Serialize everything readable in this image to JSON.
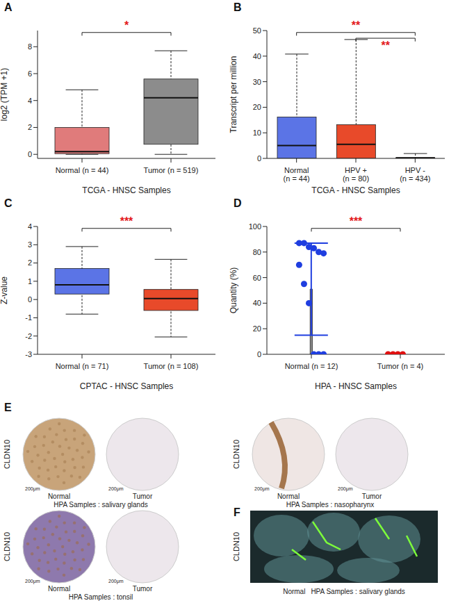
{
  "chart_data": [
    {
      "panel": "A",
      "type": "box",
      "categories": [
        "Normal (n = 44)",
        "Tumor (n = 519)"
      ],
      "boxes": [
        {
          "min": 0,
          "q1": 0.05,
          "median": 0.2,
          "q3": 2.0,
          "max": 4.8
        },
        {
          "min": 0,
          "q1": 0.75,
          "median": 4.2,
          "q3": 5.6,
          "max": 7.7
        }
      ],
      "colors": [
        "#e07b7b",
        "#8c8c8c"
      ],
      "ylabel": "log2 (TPM +1)",
      "xlabel": "TCGA - HNSC Samples",
      "ylim": [
        -0.3,
        9.2
      ],
      "yticks": [
        0,
        2,
        4,
        6,
        8
      ],
      "annotations": [
        {
          "from": "Normal (n = 44)",
          "to": "Tumor (n = 519)",
          "label": "*"
        }
      ]
    },
    {
      "panel": "B",
      "type": "box",
      "categories": [
        "Normal (n = 44)",
        "HPV + (n = 80)",
        "HPV - (n = 434)"
      ],
      "boxes": [
        {
          "min": 0,
          "q1": 0,
          "median": 5,
          "q3": 16.2,
          "max": 40.8
        },
        {
          "min": 0,
          "q1": 0,
          "median": 5.5,
          "q3": 13.2,
          "max": 46.5
        },
        {
          "min": 0,
          "q1": 0,
          "median": 0.2,
          "q3": 0.3,
          "max": 1.9
        }
      ],
      "colors": [
        "#5b74e6",
        "#e84a2a",
        "#e84a2a"
      ],
      "ylabel": "Transcript per million",
      "xlabel": "TCGA - HNSC Samples",
      "ylim": [
        0,
        50
      ],
      "yticks": [
        0,
        10,
        20,
        30,
        40,
        50
      ],
      "annotations": [
        {
          "from": "Normal (n = 44)",
          "to": "HPV - (n = 434)",
          "label": "**"
        },
        {
          "from": "HPV + (n = 80)",
          "to": "HPV - (n = 434)",
          "label": "**"
        }
      ]
    },
    {
      "panel": "C",
      "type": "box",
      "categories": [
        "Normal (n = 71)",
        "Tumor (n = 108)"
      ],
      "boxes": [
        {
          "min": -0.8,
          "q1": 0.3,
          "median": 0.8,
          "q3": 1.7,
          "max": 2.9
        },
        {
          "min": -2.05,
          "q1": -0.6,
          "median": 0.05,
          "q3": 0.55,
          "max": 2.2
        }
      ],
      "colors": [
        "#5b74e6",
        "#e84a2a"
      ],
      "ylabel": "Z-value",
      "xlabel": "CPTAC - HNSC Samples",
      "ylim": [
        -3,
        4
      ],
      "yticks": [
        -3,
        -2,
        -1,
        0,
        1,
        2,
        3,
        4
      ],
      "annotations": [
        {
          "from": "Normal (n = 71)",
          "to": "Tumor (n = 108)",
          "label": "***"
        }
      ]
    },
    {
      "panel": "D",
      "type": "bar",
      "categories": [
        "Normal (n = 12)",
        "Tumor (n = 4)"
      ],
      "values": [
        51,
        0
      ],
      "errors": [
        36,
        0
      ],
      "points": [
        [
          87,
          87,
          84,
          83,
          80,
          79,
          70,
          55,
          40,
          0,
          0,
          0
        ],
        [
          0,
          0,
          0,
          0
        ]
      ],
      "color": "#8a8a8a",
      "colors": [
        "#1f3ee0",
        "#e01010"
      ],
      "ylabel": "Quantity (%)",
      "xlabel": "HPA - HNSC Samples",
      "ylim": [
        0,
        100
      ],
      "yticks": [
        0,
        20,
        40,
        60,
        80,
        100
      ],
      "annotations": [
        {
          "from": "Normal (n = 12)",
          "to": "Tumor (n = 4)",
          "label": "***"
        }
      ]
    }
  ],
  "image_panels": [
    {
      "panel": "E",
      "marker_label": "CLDN10",
      "scale_bar": "200μm",
      "pairs": [
        {
          "left": "Normal",
          "right": "Tumor",
          "caption": "HPA Samples : salivary glands"
        },
        {
          "left": "Normal",
          "right": "Tumor",
          "caption": "HPA Samples : nasopharynx"
        },
        {
          "left": "Normal",
          "right": "Tumor",
          "caption": "HPA Samples : tonsil"
        }
      ]
    },
    {
      "panel": "F",
      "marker_label": "CLDN10",
      "label": "Normal",
      "caption": "HPA Samples : salivary glands"
    }
  ]
}
